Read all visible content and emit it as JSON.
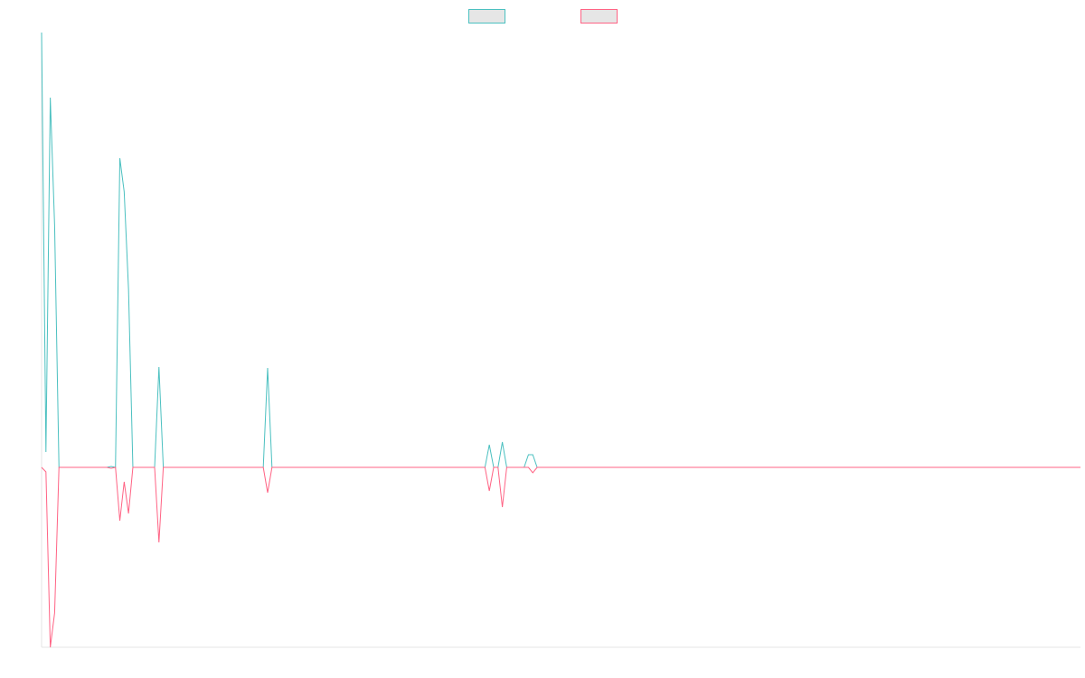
{
  "chart_data": {
    "type": "line",
    "categories": [
      null,
      null,
      null,
      null,
      null,
      null,
      null,
      null,
      null,
      null,
      null,
      null,
      null,
      null,
      null,
      null,
      null,
      null,
      null,
      null,
      null,
      null,
      null,
      null,
      null,
      null,
      null,
      null,
      null,
      null,
      null,
      null,
      null,
      null,
      null,
      null,
      null,
      null,
      null,
      null,
      null,
      null,
      null,
      null,
      null,
      null,
      null,
      null,
      null,
      null,
      null,
      null,
      null,
      null,
      null,
      null,
      null,
      null,
      null,
      null,
      null,
      null,
      null,
      null,
      null,
      null,
      null,
      null,
      null,
      null,
      null,
      null,
      null,
      null,
      null,
      null,
      null,
      null,
      null,
      null,
      null,
      null,
      null,
      null,
      null,
      null,
      null,
      null,
      null,
      null,
      null,
      null,
      null,
      null,
      null,
      null,
      null,
      null,
      null,
      null,
      null,
      null,
      null,
      null,
      null,
      null,
      null,
      null,
      null,
      null,
      null,
      null,
      null,
      null,
      null,
      null,
      null,
      null,
      null,
      null,
      null,
      null,
      null,
      null,
      null,
      null,
      null,
      null,
      null,
      null,
      null,
      null,
      null,
      null,
      null,
      null,
      null,
      null,
      null,
      null,
      null,
      null,
      null,
      null,
      null,
      null,
      null,
      null,
      null,
      null,
      null,
      null,
      null,
      null,
      null,
      null,
      null,
      null,
      null,
      null,
      null,
      null,
      null,
      null,
      null,
      null,
      null,
      null,
      null,
      null,
      null,
      null,
      null,
      null,
      null,
      null,
      null,
      null,
      null,
      null,
      null,
      null,
      null,
      null,
      null,
      null,
      null,
      null,
      null,
      null,
      null,
      null,
      null,
      null,
      null,
      null,
      null,
      null,
      null,
      null,
      null,
      null,
      null,
      null,
      null,
      null,
      null,
      null,
      null,
      null,
      null,
      null,
      null,
      null,
      null,
      null,
      null,
      null,
      null,
      null,
      null,
      null,
      null,
      null,
      null,
      null,
      null,
      null,
      null,
      null,
      null,
      null,
      null,
      null,
      null,
      null,
      null,
      null,
      null,
      null
    ],
    "series": [
      {
        "color": "#4bc0c0",
        "values": [
          48.1,
          1.7,
          40.9,
          26.7,
          0,
          0,
          0,
          0,
          0,
          0,
          0,
          0,
          0,
          0,
          0,
          0,
          0.1,
          0,
          34.2,
          30.5,
          19.7,
          0,
          0,
          0,
          0,
          0,
          0,
          11.1,
          0,
          0,
          0,
          0,
          0,
          0,
          0,
          0,
          0,
          0,
          0,
          0,
          0,
          0,
          0,
          0,
          0,
          0,
          0,
          0,
          0,
          0,
          0,
          0,
          11,
          0,
          0,
          0,
          0,
          0,
          0,
          0,
          0,
          0,
          0,
          0,
          0,
          0,
          0,
          0,
          0,
          0,
          0,
          0,
          0,
          0,
          0,
          0,
          0,
          0,
          0,
          0,
          0,
          0,
          0,
          0,
          0,
          0,
          0,
          0,
          0,
          0,
          0,
          0,
          0,
          0,
          0,
          0,
          0,
          0,
          0,
          0,
          0,
          0,
          0,
          2.5,
          0,
          0,
          2.8,
          0,
          0,
          0,
          0,
          0,
          1.4,
          1.4,
          0,
          0,
          0,
          0,
          0,
          0,
          0,
          0,
          0,
          0,
          0,
          0,
          0,
          0,
          0,
          0,
          0,
          0,
          0,
          0,
          0,
          0,
          0,
          0,
          0,
          0,
          0,
          0,
          0,
          0,
          0,
          0,
          0,
          0,
          0,
          0,
          0,
          0,
          0,
          0,
          0,
          0,
          0,
          0,
          0,
          0,
          0,
          0,
          0,
          0,
          0,
          0,
          0,
          0,
          0,
          0,
          0,
          0,
          0,
          0,
          0,
          0,
          0,
          0,
          0,
          0,
          0,
          0,
          0,
          0,
          0,
          0,
          0,
          0,
          0,
          0,
          0,
          0,
          0,
          0,
          0,
          0,
          0,
          0,
          0,
          0,
          0,
          0,
          0,
          0,
          0,
          0,
          0,
          0,
          0,
          0,
          0,
          0,
          0,
          0,
          0,
          0,
          0,
          0,
          0,
          0,
          0,
          0,
          0,
          0,
          0,
          0,
          0,
          0,
          0,
          0,
          0,
          0,
          0,
          0,
          0,
          0,
          0,
          0,
          0,
          0
        ]
      },
      {
        "color": "#ff6384",
        "values": [
          0,
          -0.5,
          -19.9,
          -16.1,
          0,
          0,
          0,
          0,
          0,
          0,
          0,
          0,
          0,
          0,
          0,
          0,
          -0.1,
          0,
          -5.9,
          -1.6,
          -5.1,
          0,
          0,
          0,
          0,
          0,
          0,
          -8.3,
          0,
          0,
          0,
          0,
          0,
          0,
          0,
          0,
          0,
          0,
          0,
          0,
          0,
          0,
          0,
          0,
          0,
          0,
          0,
          0,
          0,
          0,
          0,
          0,
          -2.8,
          0,
          0,
          0,
          0,
          0,
          0,
          0,
          0,
          0,
          0,
          0,
          0,
          0,
          0,
          0,
          0,
          0,
          0,
          0,
          0,
          0,
          0,
          0,
          0,
          0,
          0,
          0,
          0,
          0,
          0,
          0,
          0,
          0,
          0,
          0,
          0,
          0,
          0,
          0,
          0,
          0,
          0,
          0,
          0,
          0,
          0,
          0,
          0,
          0,
          0,
          -2.6,
          0,
          0,
          -4.4,
          0,
          0,
          0,
          0,
          0,
          0,
          -0.6,
          0,
          0,
          0,
          0,
          0,
          0,
          0,
          0,
          0,
          0,
          0,
          0,
          0,
          0,
          0,
          0,
          0,
          0,
          0,
          0,
          0,
          0,
          0,
          0,
          0,
          0,
          0,
          0,
          0,
          0,
          0,
          0,
          0,
          0,
          0,
          0,
          0,
          0,
          0,
          0,
          0,
          0,
          0,
          0,
          0,
          0,
          0,
          0,
          0,
          0,
          0,
          0,
          0,
          0,
          0,
          0,
          0,
          0,
          0,
          0,
          0,
          0,
          0,
          0,
          0,
          0,
          0,
          0,
          0,
          0,
          0,
          0,
          0,
          0,
          0,
          0,
          0,
          0,
          0,
          0,
          0,
          0,
          0,
          0,
          0,
          0,
          0,
          0,
          0,
          0,
          0,
          0,
          0,
          0,
          0,
          0,
          0,
          0,
          0,
          0,
          0,
          0,
          0,
          0,
          0,
          0,
          0,
          0,
          0,
          0,
          0,
          0,
          0,
          0,
          0,
          0,
          0,
          0,
          0,
          0,
          0,
          0,
          0,
          0,
          0,
          0
        ]
      }
    ],
    "ylim": [
      -19.9,
      48.1
    ],
    "legend": "top"
  }
}
